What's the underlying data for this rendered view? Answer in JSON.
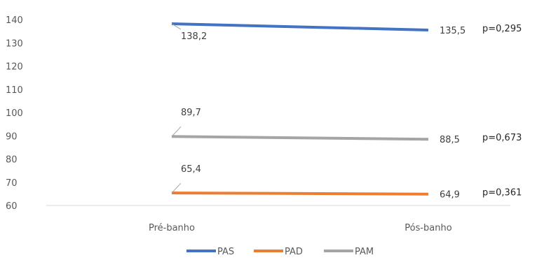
{
  "chart_data": {
    "type": "line",
    "title": "",
    "xlabel": "",
    "ylabel": "",
    "categories": [
      "Pré-banho",
      "Pós-banho"
    ],
    "ylim": [
      60,
      140
    ],
    "yticks": [
      "60",
      "70",
      "80",
      "90",
      "100",
      "110",
      "120",
      "130",
      "140"
    ],
    "grid": false,
    "legend_position": "bottom",
    "series": [
      {
        "name": "PAS",
        "color": "#4472C4",
        "values": [
          138.2,
          135.5
        ],
        "labels": [
          "138,2",
          "135,5"
        ],
        "p_value": "p=0,295"
      },
      {
        "name": "PAD",
        "color": "#ED7D31",
        "values": [
          65.4,
          64.9
        ],
        "labels": [
          "65,4",
          "64,9"
        ],
        "p_value": "p=0,361"
      },
      {
        "name": "PAM",
        "color": "#A5A5A5",
        "values": [
          89.7,
          88.5
        ],
        "labels": [
          "89,7",
          "88,5"
        ],
        "p_value": "p=0,673"
      }
    ]
  }
}
